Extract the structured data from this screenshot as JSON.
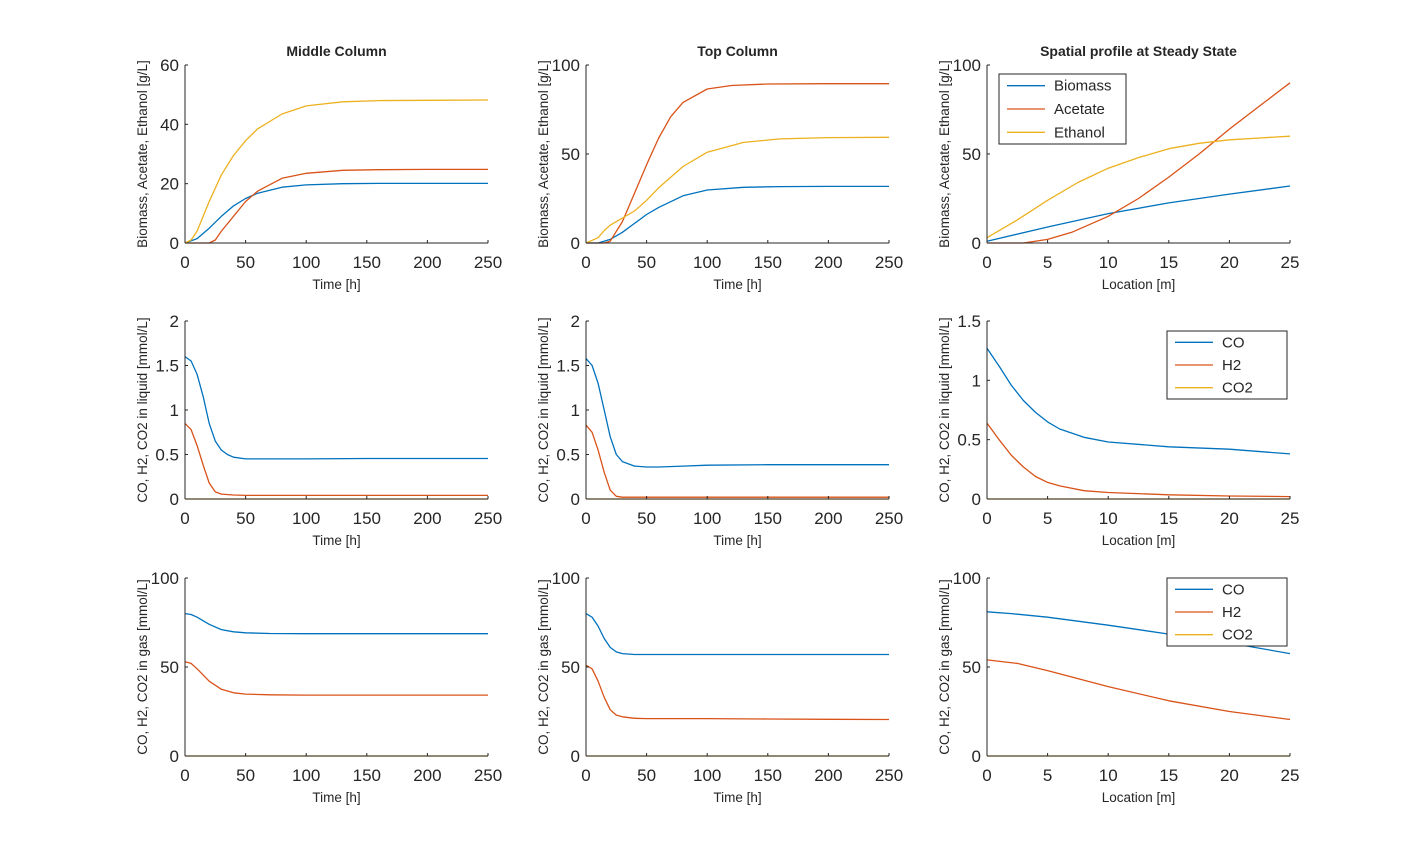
{
  "colors": {
    "blue": "#0072BD",
    "orange": "#D95319",
    "yellow": "#EDB120"
  },
  "chart_data": [
    {
      "type": "line",
      "title": "Middle Column",
      "xlabel": "Time [h]",
      "ylabel": "Biomass, Acetate, Ethanol [g/L]",
      "xlim": [
        0,
        250
      ],
      "ylim": [
        0,
        60
      ],
      "xticks": [
        0,
        50,
        100,
        150,
        200,
        250
      ],
      "yticks": [
        0,
        20,
        40,
        60
      ],
      "grid": false,
      "legend": null,
      "series": [
        {
          "color": "blue",
          "x": [
            0,
            10,
            20,
            30,
            40,
            50,
            60,
            80,
            100,
            130,
            160,
            200,
            250
          ],
          "y": [
            0,
            1.5,
            5,
            9,
            12.5,
            15,
            16.8,
            18.8,
            19.6,
            20,
            20.1,
            20.1,
            20.1
          ]
        },
        {
          "color": "orange",
          "x": [
            0,
            20,
            25,
            30,
            40,
            50,
            60,
            80,
            100,
            130,
            160,
            200,
            250
          ],
          "y": [
            0,
            0,
            1,
            4,
            9,
            14,
            17.5,
            21.8,
            23.5,
            24.5,
            24.7,
            24.8,
            24.8
          ]
        },
        {
          "color": "yellow",
          "x": [
            0,
            5,
            10,
            20,
            30,
            40,
            50,
            60,
            80,
            100,
            130,
            160,
            200,
            250
          ],
          "y": [
            0,
            1,
            4,
            14,
            23,
            29.5,
            34.5,
            38.5,
            43.5,
            46.2,
            47.6,
            48,
            48.1,
            48.2
          ]
        }
      ]
    },
    {
      "type": "line",
      "title": "Top Column",
      "xlabel": "Time [h]",
      "ylabel": "Biomass, Acetate, Ethanol [g/L]",
      "xlim": [
        0,
        250
      ],
      "ylim": [
        0,
        100
      ],
      "xticks": [
        0,
        50,
        100,
        150,
        200,
        250
      ],
      "yticks": [
        0,
        50,
        100
      ],
      "grid": false,
      "legend": null,
      "series": [
        {
          "color": "blue",
          "x": [
            0,
            10,
            20,
            30,
            40,
            50,
            60,
            80,
            100,
            130,
            160,
            200,
            250
          ],
          "y": [
            0,
            0,
            2,
            6,
            11,
            16,
            20,
            26.5,
            29.8,
            31.3,
            31.7,
            31.8,
            31.8
          ]
        },
        {
          "color": "orange",
          "x": [
            0,
            15,
            20,
            30,
            40,
            50,
            60,
            70,
            80,
            100,
            120,
            150,
            200,
            250
          ],
          "y": [
            0,
            0,
            1,
            12,
            28,
            44,
            59,
            71,
            79,
            86.5,
            88.5,
            89.3,
            89.5,
            89.5
          ]
        },
        {
          "color": "yellow",
          "x": [
            0,
            10,
            15,
            20,
            30,
            40,
            50,
            60,
            80,
            100,
            130,
            160,
            200,
            250
          ],
          "y": [
            0,
            3,
            7,
            10,
            14,
            18,
            24,
            31,
            43,
            51,
            56.5,
            58.5,
            59.2,
            59.4
          ]
        }
      ]
    },
    {
      "type": "line",
      "title": "Spatial profile at Steady State",
      "xlabel": "Location [m]",
      "ylabel": "Biomass, Acetate, Ethanol [g/L]",
      "xlim": [
        0,
        25
      ],
      "ylim": [
        0,
        100
      ],
      "xticks": [
        0,
        5,
        10,
        15,
        20,
        25
      ],
      "yticks": [
        0,
        50,
        100
      ],
      "grid": false,
      "legend": "top-left",
      "series": [
        {
          "name": "Biomass",
          "color": "blue",
          "x": [
            0,
            5,
            10,
            15,
            20,
            25
          ],
          "y": [
            1,
            9,
            16.5,
            22.5,
            27.5,
            32
          ]
        },
        {
          "name": "Acetate",
          "color": "orange",
          "x": [
            0,
            3,
            5,
            7,
            10,
            12.5,
            15,
            17.5,
            20,
            22.5,
            25
          ],
          "y": [
            0,
            0,
            2,
            6,
            15,
            25,
            37,
            50,
            64,
            77,
            90
          ]
        },
        {
          "name": "Ethanol",
          "color": "yellow",
          "x": [
            0,
            2.5,
            5,
            7.5,
            10,
            12.5,
            15,
            17.5,
            20,
            22.5,
            25
          ],
          "y": [
            3,
            13,
            24,
            34,
            42,
            48,
            53,
            56,
            58,
            59,
            60
          ]
        }
      ]
    },
    {
      "type": "line",
      "title": "",
      "xlabel": "Time [h]",
      "ylabel": "CO, H2, CO2 in liquid [mmol/L]",
      "xlim": [
        0,
        250
      ],
      "ylim": [
        0,
        2
      ],
      "xticks": [
        0,
        50,
        100,
        150,
        200,
        250
      ],
      "yticks": [
        0,
        0.5,
        1,
        1.5,
        2
      ],
      "grid": false,
      "legend": null,
      "series": [
        {
          "color": "blue",
          "x": [
            0,
            5,
            10,
            15,
            20,
            25,
            30,
            35,
            40,
            50,
            60,
            80,
            100,
            150,
            200,
            250
          ],
          "y": [
            1.6,
            1.55,
            1.4,
            1.15,
            0.85,
            0.65,
            0.55,
            0.5,
            0.47,
            0.45,
            0.45,
            0.45,
            0.45,
            0.455,
            0.455,
            0.455
          ]
        },
        {
          "color": "orange",
          "x": [
            0,
            5,
            10,
            15,
            20,
            25,
            30,
            40,
            50,
            100,
            250
          ],
          "y": [
            0.85,
            0.78,
            0.6,
            0.38,
            0.18,
            0.08,
            0.055,
            0.045,
            0.04,
            0.04,
            0.04
          ]
        },
        {
          "color": "yellow",
          "x": [
            0,
            250
          ],
          "y": [
            0,
            0
          ]
        }
      ]
    },
    {
      "type": "line",
      "title": "",
      "xlabel": "Time [h]",
      "ylabel": "CO, H2, CO2 in liquid [mmol/L]",
      "xlim": [
        0,
        250
      ],
      "ylim": [
        0,
        2
      ],
      "xticks": [
        0,
        50,
        100,
        150,
        200,
        250
      ],
      "yticks": [
        0,
        0.5,
        1,
        1.5,
        2
      ],
      "grid": false,
      "legend": null,
      "series": [
        {
          "color": "blue",
          "x": [
            0,
            5,
            10,
            15,
            20,
            25,
            30,
            40,
            50,
            60,
            80,
            100,
            150,
            200,
            250
          ],
          "y": [
            1.58,
            1.5,
            1.3,
            1.0,
            0.7,
            0.5,
            0.42,
            0.37,
            0.36,
            0.36,
            0.37,
            0.38,
            0.385,
            0.385,
            0.385
          ]
        },
        {
          "color": "orange",
          "x": [
            0,
            5,
            10,
            15,
            20,
            25,
            30,
            40,
            50,
            100,
            250
          ],
          "y": [
            0.83,
            0.75,
            0.55,
            0.3,
            0.1,
            0.03,
            0.02,
            0.02,
            0.02,
            0.02,
            0.02
          ]
        },
        {
          "color": "yellow",
          "x": [
            0,
            250
          ],
          "y": [
            0,
            0
          ]
        }
      ]
    },
    {
      "type": "line",
      "title": "",
      "xlabel": "Location [m]",
      "ylabel": "CO, H2, CO2 in liquid [mmol/L]",
      "xlim": [
        0,
        25
      ],
      "ylim": [
        0,
        1.5
      ],
      "xticks": [
        0,
        5,
        10,
        15,
        20,
        25
      ],
      "yticks": [
        0,
        0.5,
        1,
        1.5
      ],
      "grid": false,
      "legend": "top-right",
      "series": [
        {
          "name": "CO",
          "color": "blue",
          "x": [
            0,
            1,
            2,
            3,
            4,
            5,
            6,
            8,
            10,
            15,
            20,
            25
          ],
          "y": [
            1.27,
            1.12,
            0.96,
            0.83,
            0.73,
            0.65,
            0.59,
            0.52,
            0.48,
            0.44,
            0.42,
            0.38
          ]
        },
        {
          "name": "H2",
          "color": "orange",
          "x": [
            0,
            1,
            2,
            3,
            4,
            5,
            6,
            8,
            10,
            15,
            20,
            25
          ],
          "y": [
            0.64,
            0.5,
            0.37,
            0.27,
            0.19,
            0.14,
            0.11,
            0.07,
            0.055,
            0.035,
            0.025,
            0.02
          ]
        },
        {
          "name": "CO2",
          "color": "yellow",
          "x": [
            0,
            25
          ],
          "y": [
            0,
            0
          ]
        }
      ]
    },
    {
      "type": "line",
      "title": "",
      "xlabel": "Time [h]",
      "ylabel": "CO, H2, CO2 in gas [mmol/L]",
      "xlim": [
        0,
        250
      ],
      "ylim": [
        0,
        100
      ],
      "xticks": [
        0,
        50,
        100,
        150,
        200,
        250
      ],
      "yticks": [
        0,
        50,
        100
      ],
      "grid": false,
      "legend": null,
      "series": [
        {
          "color": "blue",
          "x": [
            0,
            5,
            10,
            20,
            30,
            40,
            50,
            70,
            100,
            150,
            200,
            250
          ],
          "y": [
            80,
            79.5,
            78,
            74,
            71,
            69.8,
            69.2,
            68.8,
            68.7,
            68.7,
            68.7,
            68.7
          ]
        },
        {
          "color": "orange",
          "x": [
            0,
            5,
            10,
            20,
            30,
            40,
            50,
            70,
            100,
            150,
            200,
            250
          ],
          "y": [
            53,
            52,
            49,
            42,
            37.5,
            35.5,
            34.8,
            34.4,
            34.2,
            34.2,
            34.2,
            34.2
          ]
        },
        {
          "color": "yellow",
          "x": [
            0,
            250
          ],
          "y": [
            0,
            0
          ]
        }
      ]
    },
    {
      "type": "line",
      "title": "",
      "xlabel": "Time [h]",
      "ylabel": "CO, H2, CO2 in gas [mmol/L]",
      "xlim": [
        0,
        250
      ],
      "ylim": [
        0,
        100
      ],
      "xticks": [
        0,
        50,
        100,
        150,
        200,
        250
      ],
      "yticks": [
        0,
        50,
        100
      ],
      "grid": false,
      "legend": null,
      "series": [
        {
          "color": "blue",
          "x": [
            0,
            5,
            10,
            15,
            20,
            25,
            30,
            40,
            50,
            70,
            100,
            150,
            200,
            250
          ],
          "y": [
            80,
            78,
            73,
            66,
            61,
            58.5,
            57.5,
            57,
            57,
            57,
            57,
            57,
            57,
            57
          ]
        },
        {
          "color": "orange",
          "x": [
            0,
            5,
            10,
            15,
            20,
            25,
            30,
            40,
            50,
            70,
            100,
            150,
            200,
            250
          ],
          "y": [
            51,
            49,
            42,
            33,
            26,
            23,
            22,
            21.2,
            21,
            21,
            21,
            20.8,
            20.6,
            20.5
          ]
        },
        {
          "color": "yellow",
          "x": [
            0,
            250
          ],
          "y": [
            0,
            0
          ]
        }
      ]
    },
    {
      "type": "line",
      "title": "",
      "xlabel": "Location [m]",
      "ylabel": "CO, H2, CO2 in gas [mmol/L]",
      "xlim": [
        0,
        25
      ],
      "ylim": [
        0,
        100
      ],
      "xticks": [
        0,
        5,
        10,
        15,
        20,
        25
      ],
      "yticks": [
        0,
        50,
        100
      ],
      "grid": false,
      "legend": "top-right",
      "series": [
        {
          "name": "CO",
          "color": "blue",
          "x": [
            0,
            2,
            5,
            10,
            15,
            20,
            25
          ],
          "y": [
            81,
            80,
            78,
            73.5,
            68.5,
            63.5,
            57.5
          ]
        },
        {
          "name": "H2",
          "color": "orange",
          "x": [
            0,
            2.5,
            5,
            10,
            15,
            20,
            25
          ],
          "y": [
            54,
            52,
            48,
            39,
            31,
            25,
            20.5
          ]
        },
        {
          "name": "CO2",
          "color": "yellow",
          "x": [
            0,
            25
          ],
          "y": [
            0,
            0
          ]
        }
      ]
    }
  ]
}
